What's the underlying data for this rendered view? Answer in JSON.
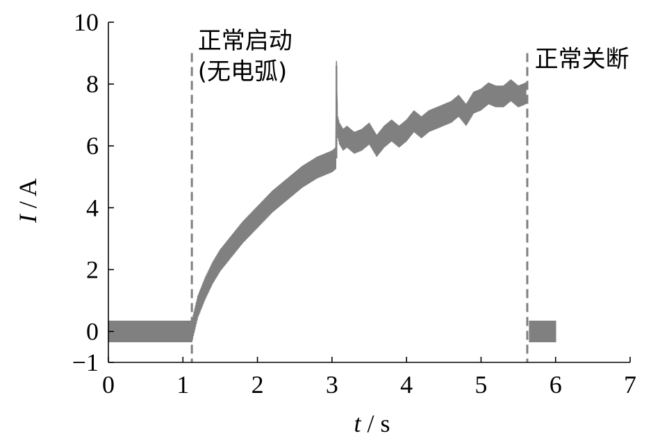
{
  "chart_data": {
    "type": "line",
    "title": "",
    "xlabel": {
      "var": "t",
      "sep": " / ",
      "unit": "s"
    },
    "ylabel": {
      "var": "I",
      "sep": " / ",
      "unit": "A"
    },
    "xlim": [
      0,
      7
    ],
    "ylim": [
      -1,
      10
    ],
    "xticks": [
      0,
      1,
      2,
      3,
      4,
      5,
      6,
      7
    ],
    "xtick_labels": [
      "0",
      "1",
      "2",
      "3",
      "4",
      "5",
      "6",
      "7"
    ],
    "yticks": [
      -1,
      0,
      2,
      4,
      6,
      8,
      10
    ],
    "ytick_labels": [
      "−1",
      "0",
      "2",
      "4",
      "6",
      "8",
      "10"
    ],
    "grid": false,
    "line_color": "#808080",
    "marker_color": "#808080",
    "series": [
      {
        "noise_amplitude": 0.35,
        "x": [
          0.0,
          0.2,
          0.4,
          0.6,
          0.8,
          1.0,
          1.12,
          1.15,
          1.2,
          1.3,
          1.4,
          1.5,
          1.6,
          1.8,
          2.0,
          2.2,
          2.4,
          2.6,
          2.8,
          3.0,
          3.05,
          3.06,
          3.07,
          3.08,
          3.1,
          3.15,
          3.2,
          3.3,
          3.4,
          3.5,
          3.6,
          3.7,
          3.8,
          3.9,
          4.0,
          4.1,
          4.2,
          4.3,
          4.4,
          4.5,
          4.6,
          4.7,
          4.8,
          4.9,
          5.0,
          5.1,
          5.2,
          5.3,
          5.4,
          5.5,
          5.6,
          5.62,
          5.65,
          6.0
        ],
        "y": [
          0.0,
          0.0,
          0.0,
          0.0,
          0.0,
          0.0,
          0.0,
          0.3,
          0.8,
          1.4,
          1.9,
          2.3,
          2.6,
          3.2,
          3.7,
          4.2,
          4.6,
          5.0,
          5.3,
          5.5,
          5.6,
          8.4,
          7.0,
          6.6,
          6.4,
          6.2,
          6.3,
          6.1,
          6.2,
          6.4,
          6.0,
          6.3,
          6.5,
          6.3,
          6.5,
          6.8,
          6.6,
          6.8,
          6.9,
          7.0,
          7.1,
          7.3,
          7.0,
          7.4,
          7.5,
          7.7,
          7.6,
          7.6,
          7.8,
          7.6,
          7.7,
          null,
          0.0,
          0.0
        ]
      }
    ],
    "vlines": [
      1.12,
      5.62
    ],
    "annotations": [
      {
        "text": "正常启动",
        "x": 1.2,
        "y": 9.15
      },
      {
        "text": "(无电弧)",
        "x": 1.2,
        "y": 8.15
      },
      {
        "text": "正常关断",
        "x": 5.72,
        "y": 8.55
      }
    ]
  }
}
